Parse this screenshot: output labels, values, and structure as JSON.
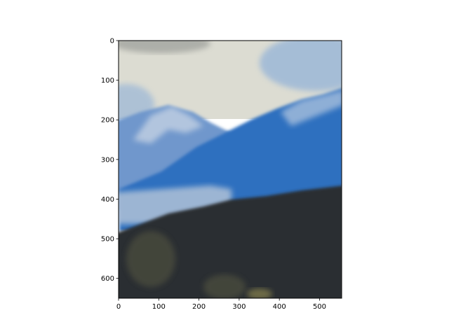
{
  "chart_data": {
    "type": "image",
    "title": "",
    "xlabel": "",
    "ylabel": "",
    "xlim": [
      0,
      555
    ],
    "ylim": [
      650,
      0
    ],
    "y_inverted": true,
    "xticks": [
      0,
      100,
      200,
      300,
      400,
      500
    ],
    "yticks": [
      0,
      100,
      200,
      300,
      400,
      500,
      600
    ],
    "grid": false,
    "image_content": "blurred photo of blue mountains under a pale cloudy sky with a dark forested hillside in the foreground",
    "colors": {
      "sky_light": "#dcdcd2",
      "sky_blue": "#8fb0d8",
      "far_mountain": "#6f97cc",
      "near_mountain": "#2f6fbf",
      "ridge_snow": "#cfd9e6",
      "haze": "#a9bdd6",
      "forest_dark": "#2a2f33",
      "forest_olive": "#4a4b3c"
    }
  }
}
